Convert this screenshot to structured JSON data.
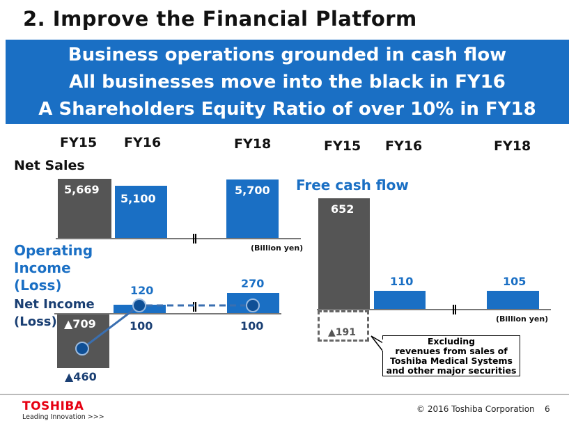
{
  "title": "2. Improve the Financial Platform",
  "banner": [
    "Business operations grounded in cash flow",
    "All businesses move into the black in FY16",
    "A Shareholders Equity Ratio of over 10% in FY18"
  ],
  "left": {
    "years": [
      "FY15",
      "FY16",
      "FY18"
    ],
    "net_sales": {
      "label": "Net Sales",
      "values": [
        "5,669",
        "5,100",
        "5,700"
      ],
      "unit": "(Billion yen)"
    },
    "operating_income": {
      "label": [
        "Operating",
        "Income",
        "(Loss)"
      ],
      "values": [
        "▲709",
        "120",
        "270"
      ]
    },
    "net_income": {
      "label": [
        "Net Income",
        "(Loss)"
      ],
      "values": [
        "▲460",
        "100",
        "100"
      ]
    }
  },
  "right": {
    "years": [
      "FY15",
      "FY16",
      "FY18"
    ],
    "free_cash_flow": {
      "label": "Free cash flow",
      "values": [
        "652",
        "110",
        "105"
      ],
      "excluded_value": "▲191",
      "unit": "(Billion yen)"
    },
    "callout": [
      "Excluding",
      "revenues from sales of",
      "Toshiba Medical Systems",
      "and other major securities"
    ]
  },
  "footer": {
    "logo": "TOSHIBA",
    "tagline": "Leading Innovation >>>",
    "copyright": "© 2016 Toshiba Corporation",
    "page": "6"
  },
  "colors": {
    "blue": "#1a6fc4",
    "dark": "#555555",
    "logo_red": "#e60012"
  }
}
